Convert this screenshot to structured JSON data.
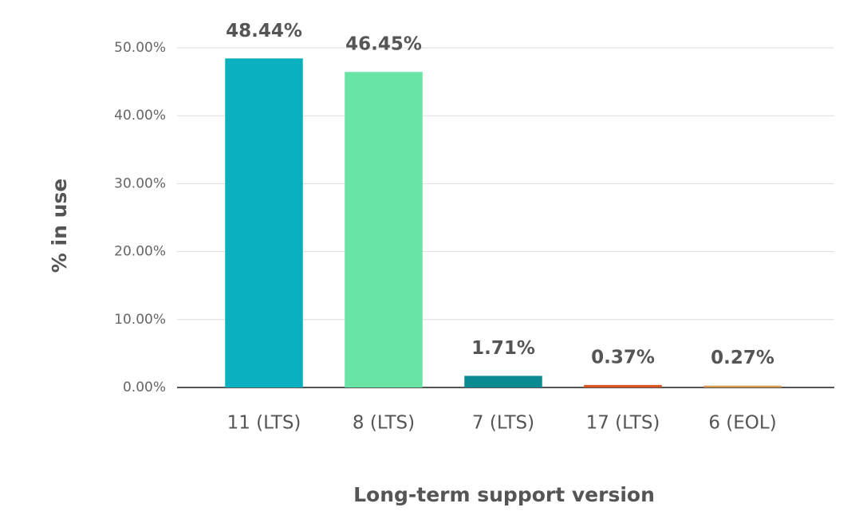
{
  "chart_data": {
    "type": "bar",
    "categories": [
      "11 (LTS)",
      "8 (LTS)",
      "7 (LTS)",
      "17 (LTS)",
      "6 (EOL)"
    ],
    "values": [
      48.44,
      46.45,
      1.71,
      0.37,
      0.27
    ],
    "value_labels": [
      "48.44%",
      "46.45%",
      "1.71%",
      "0.37%",
      "0.27%"
    ],
    "colors": [
      "#0bb0c0",
      "#68e4a5",
      "#0b8a91",
      "#d9541e",
      "#d99a52"
    ],
    "x_label": "Long-term support version",
    "y_label": "% in use",
    "ylim": [
      0,
      50
    ],
    "yticks": [
      {
        "value": 0,
        "label": "0.00%"
      },
      {
        "value": 10,
        "label": "10.00%"
      },
      {
        "value": 20,
        "label": "20.00%"
      },
      {
        "value": 30,
        "label": "30.00%"
      },
      {
        "value": 40,
        "label": "40.00%"
      },
      {
        "value": 50,
        "label": "50.00%"
      }
    ],
    "grid": true
  }
}
